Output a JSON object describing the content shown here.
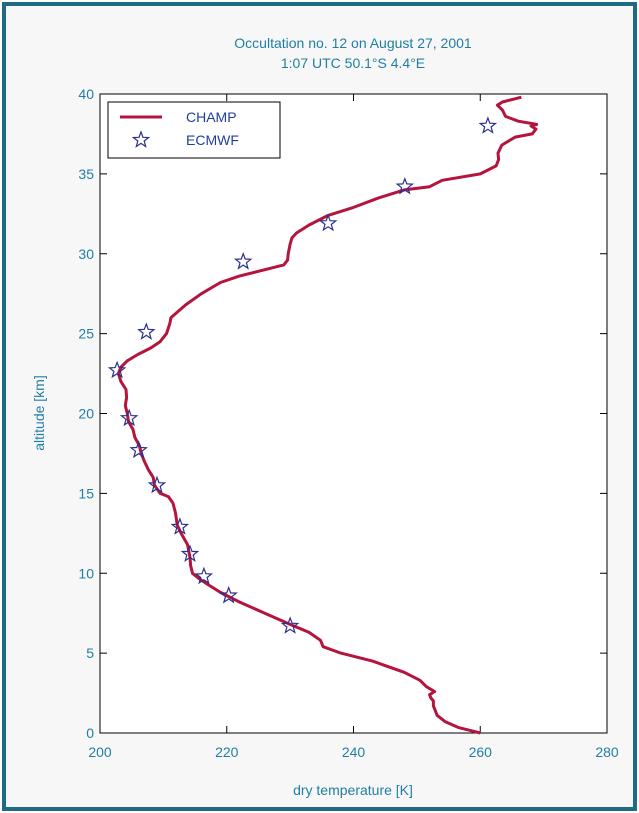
{
  "chart_data": {
    "type": "line",
    "title": "Occultation no. 12 on August 27, 2001",
    "subtitle": "1:07 UTC  50.1°S 4.4°E",
    "xlabel": "dry temperature [K]",
    "ylabel": "altitude [km]",
    "xlim": [
      200,
      280
    ],
    "ylim": [
      0,
      40
    ],
    "xticks": [
      200,
      220,
      240,
      260,
      280
    ],
    "yticks": [
      0,
      5,
      10,
      15,
      20,
      25,
      30,
      35,
      40
    ],
    "grid": false,
    "legend_position": "top-left",
    "colors": {
      "champ": "#b5143c",
      "ecmwf": "#2a2f8f",
      "text": "#1f7fa3",
      "axis": "#000000"
    },
    "series": [
      {
        "name": "CHAMP",
        "style": "line",
        "points": [
          [
            260.0,
            0.0
          ],
          [
            258.5,
            0.15
          ],
          [
            256.5,
            0.35
          ],
          [
            254.5,
            0.7
          ],
          [
            253.2,
            1.1
          ],
          [
            252.6,
            1.7
          ],
          [
            252.6,
            2.0
          ],
          [
            252.2,
            2.2
          ],
          [
            252.0,
            2.4
          ],
          [
            252.8,
            2.6
          ],
          [
            251.5,
            2.9
          ],
          [
            250.5,
            3.3
          ],
          [
            248.0,
            3.8
          ],
          [
            243.0,
            4.5
          ],
          [
            238.0,
            5.0
          ],
          [
            235.2,
            5.4
          ],
          [
            234.8,
            5.8
          ],
          [
            233.0,
            6.3
          ],
          [
            230.0,
            6.8
          ],
          [
            226.0,
            7.5
          ],
          [
            222.0,
            8.2
          ],
          [
            219.0,
            8.8
          ],
          [
            217.0,
            9.3
          ],
          [
            215.5,
            9.7
          ],
          [
            214.6,
            10.0
          ],
          [
            214.3,
            10.5
          ],
          [
            214.2,
            11.0
          ],
          [
            213.8,
            11.8
          ],
          [
            212.8,
            12.5
          ],
          [
            212.2,
            13.0
          ],
          [
            211.9,
            13.8
          ],
          [
            211.5,
            14.4
          ],
          [
            210.8,
            14.8
          ],
          [
            209.5,
            15.0
          ],
          [
            208.6,
            15.5
          ],
          [
            208.4,
            16.0
          ],
          [
            207.6,
            16.5
          ],
          [
            207.0,
            17.0
          ],
          [
            206.5,
            17.5
          ],
          [
            206.2,
            18.0
          ],
          [
            205.5,
            18.5
          ],
          [
            205.2,
            19.0
          ],
          [
            204.5,
            19.5
          ],
          [
            204.3,
            20.0
          ],
          [
            204.0,
            20.5
          ],
          [
            204.2,
            21.0
          ],
          [
            204.1,
            21.5
          ],
          [
            203.3,
            22.0
          ],
          [
            202.9,
            22.5
          ],
          [
            203.3,
            22.9
          ],
          [
            204.3,
            23.3
          ],
          [
            206.0,
            23.7
          ],
          [
            208.0,
            24.1
          ],
          [
            209.5,
            24.5
          ],
          [
            210.5,
            25.0
          ],
          [
            211.0,
            25.6
          ],
          [
            211.2,
            26.0
          ],
          [
            213.5,
            26.8
          ],
          [
            216.0,
            27.5
          ],
          [
            219.0,
            28.2
          ],
          [
            222.0,
            28.6
          ],
          [
            226.0,
            29.0
          ],
          [
            229.0,
            29.3
          ],
          [
            229.6,
            29.6
          ],
          [
            229.7,
            30.0
          ],
          [
            230.0,
            30.6
          ],
          [
            230.3,
            31.0
          ],
          [
            231.0,
            31.3
          ],
          [
            233.0,
            31.8
          ],
          [
            236.0,
            32.4
          ],
          [
            240.0,
            32.9
          ],
          [
            244.0,
            33.5
          ],
          [
            248.0,
            34.0
          ],
          [
            252.0,
            34.2
          ],
          [
            254.0,
            34.6
          ],
          [
            260.0,
            35.0
          ],
          [
            262.5,
            35.5
          ],
          [
            262.9,
            35.9
          ],
          [
            262.8,
            36.3
          ],
          [
            263.4,
            36.8
          ],
          [
            265.5,
            37.3
          ],
          [
            268.2,
            37.5
          ],
          [
            268.8,
            37.8
          ],
          [
            268.0,
            38.0
          ],
          [
            268.9,
            38.1
          ],
          [
            266.0,
            38.3
          ],
          [
            264.0,
            38.6
          ],
          [
            263.5,
            39.0
          ],
          [
            262.7,
            39.3
          ],
          [
            263.5,
            39.5
          ],
          [
            266.5,
            39.8
          ]
        ]
      },
      {
        "name": "ECMWF",
        "style": "marker-star",
        "points": [
          [
            230.0,
            6.7
          ],
          [
            220.3,
            8.6
          ],
          [
            216.4,
            9.8
          ],
          [
            214.2,
            11.2
          ],
          [
            212.6,
            12.9
          ],
          [
            209.0,
            15.5
          ],
          [
            206.1,
            17.7
          ],
          [
            204.6,
            19.7
          ],
          [
            202.7,
            22.7
          ],
          [
            207.3,
            25.1
          ],
          [
            222.6,
            29.5
          ],
          [
            236.0,
            31.9
          ],
          [
            248.1,
            34.2
          ],
          [
            261.2,
            38.0
          ]
        ]
      }
    ]
  }
}
